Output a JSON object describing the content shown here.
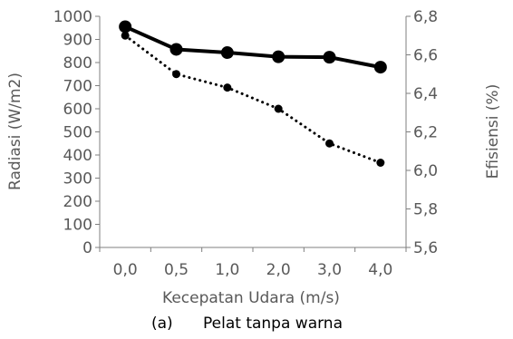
{
  "chart_data": {
    "type": "line",
    "categories": [
      "0,0",
      "0,5",
      "1,0",
      "2,0",
      "3,0",
      "4,0"
    ],
    "xlabel": "Kecepatan Udara (m/s)",
    "ylabel_left": "Radiasi (W/m2)",
    "ylabel_right": "Efisiensi (%)",
    "ylim_left": [
      0,
      1000
    ],
    "yticks_left": [
      0,
      100,
      200,
      300,
      400,
      500,
      600,
      700,
      800,
      900,
      1000
    ],
    "ylim_right": [
      5.6,
      6.8
    ],
    "yticks_right": [
      "5,6",
      "5,8",
      "6,0",
      "6,2",
      "6,4",
      "6,6",
      "6,8"
    ],
    "grid": false,
    "legend": "none",
    "series": [
      {
        "axis": "left",
        "style": "solid",
        "values": [
          955,
          857,
          843,
          825,
          823,
          780
        ]
      },
      {
        "axis": "right",
        "style": "dotted",
        "values": [
          6.7,
          6.5,
          6.43,
          6.32,
          6.14,
          6.04
        ]
      }
    ],
    "caption_label": "(a)",
    "caption_text": "Pelat tanpa warna"
  },
  "colors": {
    "axis": "#7f7f7f",
    "text": "#595959",
    "series": "#000000"
  }
}
